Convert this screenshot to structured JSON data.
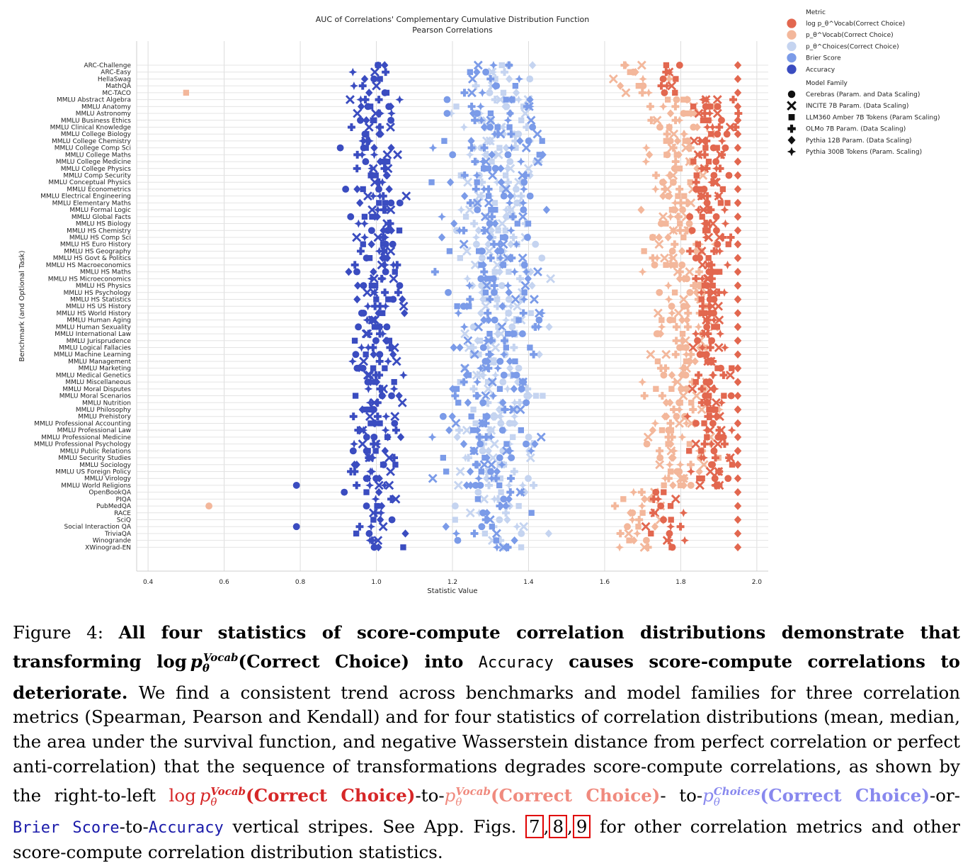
{
  "chart_data": {
    "type": "scatter",
    "title": "AUC of Correlations' Complementary Cumulative Distribution Function",
    "subtitle": "Pearson Correlations",
    "xlabel": "Statistic Value",
    "ylabel": "Benchmark (and Optional Task)",
    "xlim": [
      0.37,
      2.03
    ],
    "xticks": [
      0.4,
      0.6,
      0.8,
      1.0,
      1.2,
      1.4,
      1.6,
      1.8,
      2.0
    ],
    "xtick_labels": [
      "0.4",
      "0.6",
      "0.8",
      "1.0",
      "1.2",
      "1.4",
      "1.6",
      "1.8",
      "2.0"
    ],
    "grid": true,
    "legend_placement": "upper-right-outside",
    "categories": [
      "ARC-Challenge",
      "ARC-Easy",
      "HellaSwag",
      "MathQA",
      "MC-TACO",
      "MMLU Abstract Algebra",
      "MMLU Anatomy",
      "MMLU Astronomy",
      "MMLU Business Ethics",
      "MMLU Clinical Knowledge",
      "MMLU College Biology",
      "MMLU College Chemistry",
      "MMLU College Comp Sci",
      "MMLU College Maths",
      "MMLU College Medicine",
      "MMLU College Physics",
      "MMLU Comp Security",
      "MMLU Conceptual Physics",
      "MMLU Econometrics",
      "MMLU Electrical Engineering",
      "MMLU Elementary Maths",
      "MMLU Formal Logic",
      "MMLU Global Facts",
      "MMLU HS Biology",
      "MMLU HS Chemistry",
      "MMLU HS Comp Sci",
      "MMLU HS Euro History",
      "MMLU HS Geography",
      "MMLU HS Govt & Politics",
      "MMLU HS Macroeconomics",
      "MMLU HS Maths",
      "MMLU HS Microeconomics",
      "MMLU HS Physics",
      "MMLU HS Psychology",
      "MMLU HS Statistics",
      "MMLU HS US History",
      "MMLU HS World History",
      "MMLU Human Aging",
      "MMLU Human Sexuality",
      "MMLU International Law",
      "MMLU Jurisprudence",
      "MMLU Logical Fallacies",
      "MMLU Machine Learning",
      "MMLU Management",
      "MMLU Marketing",
      "MMLU Medical Genetics",
      "MMLU Miscellaneous",
      "MMLU Moral Disputes",
      "MMLU Moral Scenarios",
      "MMLU Nutrition",
      "MMLU Philosophy",
      "MMLU Prehistory",
      "MMLU Professional Accounting",
      "MMLU Professional Law",
      "MMLU Professional Medicine",
      "MMLU Professional Psychology",
      "MMLU Public Relations",
      "MMLU Security Studies",
      "MMLU Sociology",
      "MMLU US Foreign Policy",
      "MMLU Virology",
      "MMLU World Religions",
      "OpenBookQA",
      "PIQA",
      "PubMedQA",
      "RACE",
      "SciQ",
      "Social Interaction QA",
      "TriviaQA",
      "Winogrande",
      "XWinograd-EN"
    ],
    "series": [
      {
        "name": "log p_θ^Vocab(Correct Choice)",
        "color": "#e2674f",
        "center": 1.88,
        "spread": 0.08
      },
      {
        "name": "p_θ^Vocab(Correct Choice)",
        "color": "#f3b79b",
        "center": 1.8,
        "spread": 0.12
      },
      {
        "name": "p_θ^Choices(Correct Choice)",
        "color": "#c5d4f0",
        "center": 1.32,
        "spread": 0.16
      },
      {
        "name": "Brier Score",
        "color": "#7b9be8",
        "center": 1.3,
        "spread": 0.18
      },
      {
        "name": "Accuracy",
        "color": "#3a4cc0",
        "center": 1.0,
        "spread": 0.1
      }
    ],
    "model_families": [
      {
        "name": "Cerebras (Param. and Data Scaling)",
        "marker": "circle"
      },
      {
        "name": "INCITE 7B Param. (Data Scaling)",
        "marker": "x"
      },
      {
        "name": "LLM360 Amber 7B Tokens (Param Scaling)",
        "marker": "square"
      },
      {
        "name": "OLMo 7B Param. (Data Scaling)",
        "marker": "plus"
      },
      {
        "name": "Pythia 12B Param. (Data Scaling)",
        "marker": "diamond"
      },
      {
        "name": "Pythia 300B Tokens (Param. Scaling)",
        "marker": "star"
      }
    ],
    "highlights": [
      {
        "category": "MC-TACO",
        "series": "p_θ^Vocab(Correct Choice)",
        "x": 0.5
      },
      {
        "category": "PubMedQA",
        "series": "p_θ^Vocab(Correct Choice)",
        "x": 0.56
      },
      {
        "category": "Social Interaction QA",
        "series": "Accuracy",
        "x": 0.79
      },
      {
        "category": "MMLU World Religions",
        "series": "Accuracy",
        "x": 0.79
      }
    ]
  },
  "legend": {
    "metric_title": "Metric",
    "family_title": "Model Family",
    "metric_labels": [
      "log p_θ^Vocab(Correct Choice)",
      "p_θ^Vocab(Correct Choice)",
      "p_θ^Choices(Correct Choice)",
      "Brier Score",
      "Accuracy"
    ]
  },
  "caption": {
    "figure_label": "Figure 4:",
    "bold_part1": "All four statistics of score-compute correlation distributions demonstrate that transforming",
    "log_text": "log",
    "p_text": "p",
    "theta_text": "θ",
    "vocab_sup": "Vocab",
    "choices_sup": "Choices",
    "correct_choice": "(Correct Choice)",
    "into": "into",
    "accuracy_mono": "Accuracy",
    "bold_part2": "causes score-compute correlations to deteriorate.",
    "body1": "We find a consistent trend across benchmarks and model families for three correlation metrics (Spearman, Pearson and Kendall) and for four statistics of correlation distributions (mean, median, the area under the survival function, and negative Wasserstein distance from perfect correlation or perfect anti-correlation) that the sequence of transformations degrades score-compute correlations, as shown by the right-to-left",
    "sep1": "-to-",
    "sep2": "-",
    "to2": "to-",
    "or": "-or-",
    "brier_mono": "Brier Score",
    "to3": "-to-",
    "body2": "vertical stripes. See App. Figs.",
    "ref7": "7",
    "ref8": "8",
    "ref9": "9",
    "body3": "for other correlation metrics and other score-compute correlation distribution statistics."
  }
}
